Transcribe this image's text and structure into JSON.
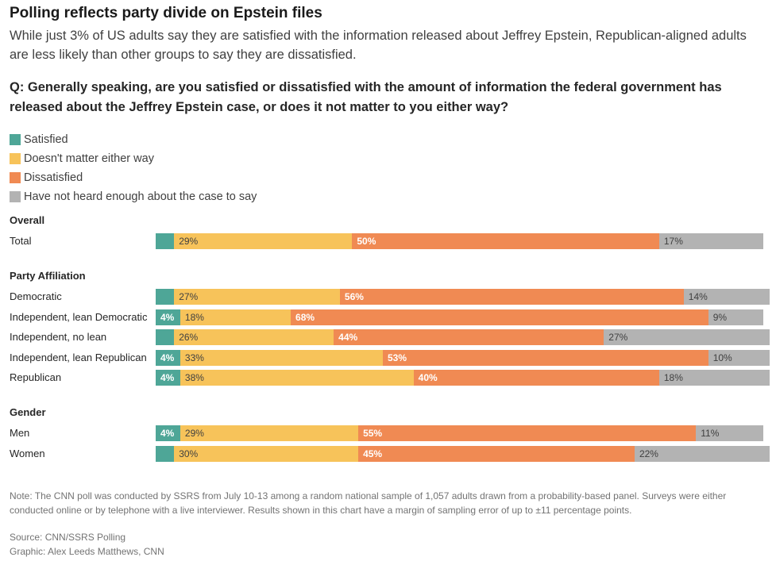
{
  "title": "Polling reflects party divide on Epstein files",
  "subtitle": "While just 3% of US adults say they are satisfied with the information released about Jeffrey Epstein, Republican-aligned adults are less likely than other groups to say they are dissatisfied.",
  "question": "Q: Generally speaking, are you satisfied or dissatisfied with the amount of information the federal government has released about the Jeffrey Epstein case, or does it not matter to you either way?",
  "note": "Note: The CNN poll was conducted by SSRS from July 10-13 among a random national sample of 1,057 adults drawn from a probability-based panel. Surveys were either conducted online or by telephone with a live interviewer. Results shown in this chart have a margin of sampling error of up to ±11 percentage points.",
  "source": "Source: CNN/SSRS Polling",
  "credit": "Graphic: Alex Leeds Matthews, CNN",
  "chart_data": {
    "type": "bar",
    "orientation": "horizontal",
    "stacked": true,
    "series": [
      {
        "name": "Satisfied",
        "color": "#4ea697"
      },
      {
        "name": "Doesn't matter either way",
        "color": "#f7c35a"
      },
      {
        "name": "Dissatisfied",
        "color": "#f08a53"
      },
      {
        "name": "Have not heard enough about the case to say",
        "color": "#b3b3b3"
      }
    ],
    "label_colors": [
      "#ffffff",
      "#404040",
      "#ffffff",
      "#404040"
    ],
    "groups": [
      {
        "name": "Overall",
        "rows": [
          {
            "label": "Total",
            "values": [
              3,
              29,
              50,
              17
            ],
            "labels": [
              "",
              "29%",
              "50%",
              "17%"
            ]
          }
        ]
      },
      {
        "name": "Party Affiliation",
        "rows": [
          {
            "label": "Democratic",
            "values": [
              3,
              27,
              56,
              14
            ],
            "labels": [
              "",
              "27%",
              "56%",
              "14%"
            ]
          },
          {
            "label": "Independent, lean Democratic",
            "values": [
              4,
              18,
              68,
              9
            ],
            "labels": [
              "4%",
              "18%",
              "68%",
              "9%"
            ]
          },
          {
            "label": "Independent, no lean",
            "values": [
              3,
              26,
              44,
              27
            ],
            "labels": [
              "",
              "26%",
              "44%",
              "27%"
            ]
          },
          {
            "label": "Independent, lean Republican",
            "values": [
              4,
              33,
              53,
              10
            ],
            "labels": [
              "4%",
              "33%",
              "53%",
              "10%"
            ]
          },
          {
            "label": "Republican",
            "values": [
              4,
              38,
              40,
              18
            ],
            "labels": [
              "4%",
              "38%",
              "40%",
              "18%"
            ]
          }
        ]
      },
      {
        "name": "Gender",
        "rows": [
          {
            "label": "Men",
            "values": [
              4,
              29,
              55,
              11
            ],
            "labels": [
              "4%",
              "29%",
              "55%",
              "11%"
            ]
          },
          {
            "label": "Women",
            "values": [
              3,
              30,
              45,
              22
            ],
            "labels": [
              "",
              "30%",
              "45%",
              "22%"
            ]
          }
        ]
      }
    ]
  }
}
